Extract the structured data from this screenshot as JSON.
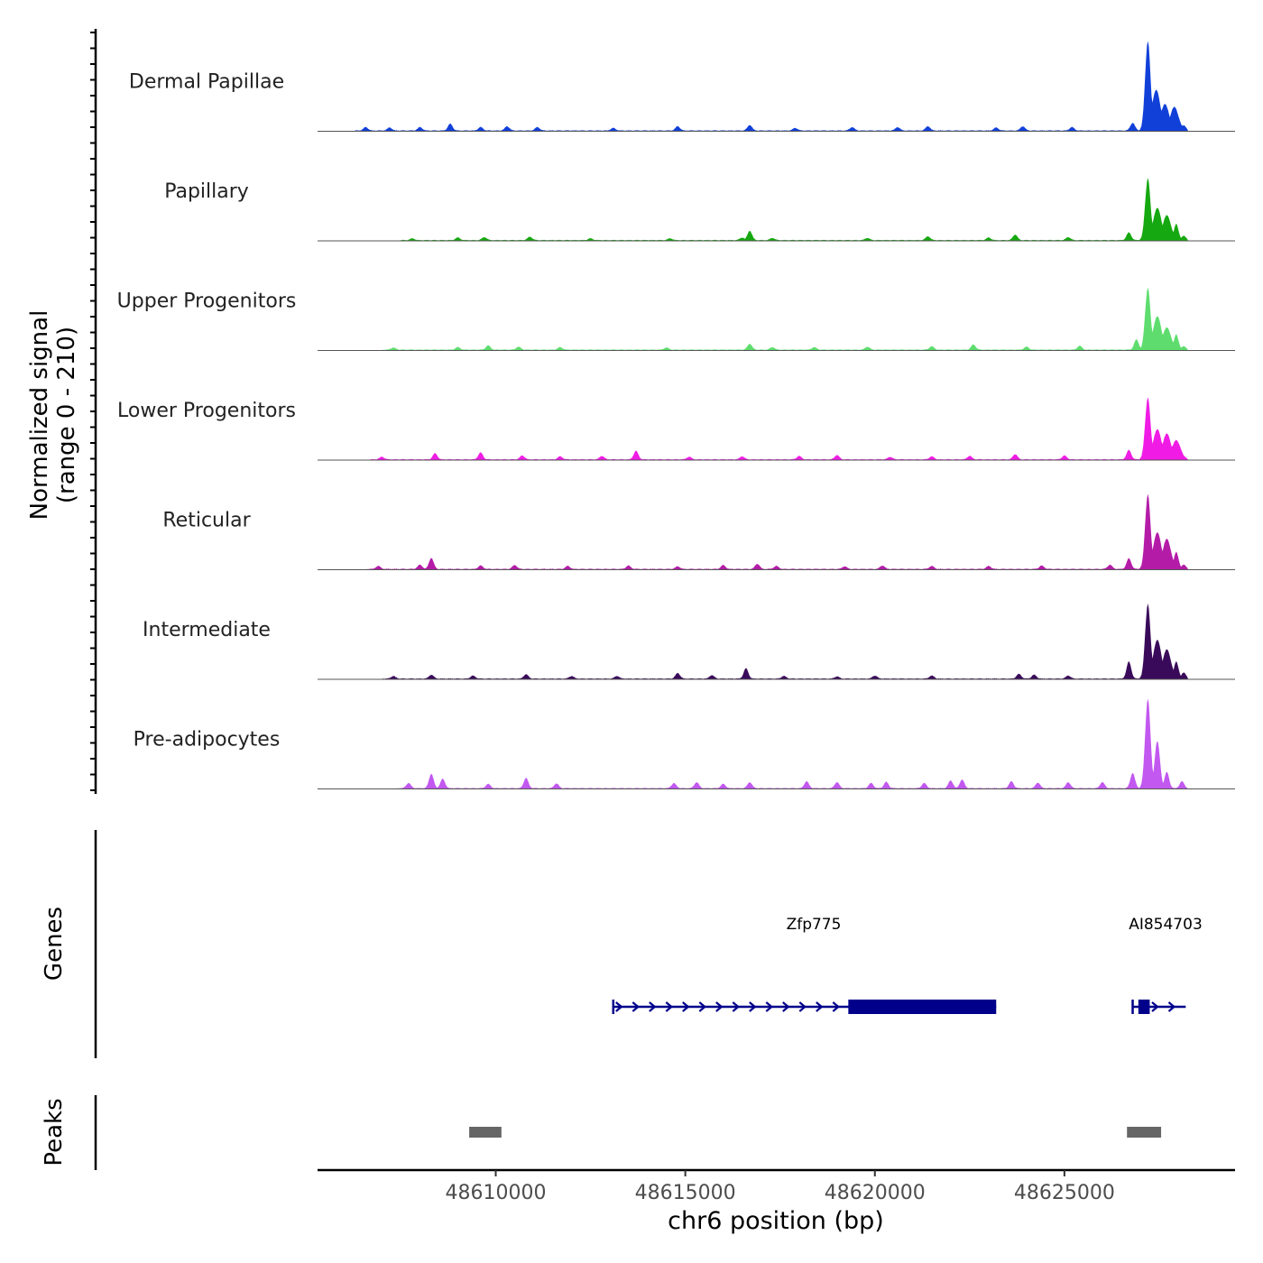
{
  "chart_data": {
    "type": "area",
    "title": "",
    "ylabel_signal": [
      "Normalized signal",
      "(range 0 - 210)"
    ],
    "ylabel_genes": "Genes",
    "ylabel_peaks": "Peaks",
    "xlabel": "chr6 position (bp)",
    "xlim": [
      48605300,
      48629500
    ],
    "x_ticks": [
      48610000,
      48615000,
      48620000,
      48625000
    ],
    "x_tick_labels": [
      "48610000",
      "48615000",
      "48620000",
      "48625000"
    ],
    "signal_ylim": [
      0,
      210
    ],
    "tracks": [
      {
        "name": "Dermal Papillae",
        "color": "#1140d9",
        "peaks": [
          [
            48606570,
            8
          ],
          [
            48607200,
            7
          ],
          [
            48608000,
            8
          ],
          [
            48608800,
            16
          ],
          [
            48609600,
            8
          ],
          [
            48610300,
            10
          ],
          [
            48611100,
            8
          ],
          [
            48613100,
            6
          ],
          [
            48614800,
            10
          ],
          [
            48616700,
            13
          ],
          [
            48617900,
            6
          ],
          [
            48619400,
            8
          ],
          [
            48620600,
            8
          ],
          [
            48621400,
            10
          ],
          [
            48623200,
            7
          ],
          [
            48623900,
            10
          ],
          [
            48625200,
            8
          ],
          [
            48626800,
            18
          ],
          [
            48627200,
            210
          ],
          [
            48627420,
            95
          ],
          [
            48627650,
            62
          ],
          [
            48627900,
            55
          ],
          [
            48628150,
            12
          ]
        ]
      },
      {
        "name": "Papillary",
        "color": "#16a810",
        "peaks": [
          [
            48607800,
            4
          ],
          [
            48609000,
            6
          ],
          [
            48609700,
            7
          ],
          [
            48610900,
            8
          ],
          [
            48612500,
            4
          ],
          [
            48614600,
            4
          ],
          [
            48616500,
            6
          ],
          [
            48616700,
            22
          ],
          [
            48617300,
            5
          ],
          [
            48619800,
            5
          ],
          [
            48621400,
            9
          ],
          [
            48623000,
            6
          ],
          [
            48623700,
            13
          ],
          [
            48625100,
            7
          ],
          [
            48626700,
            18
          ],
          [
            48627200,
            145
          ],
          [
            48627450,
            75
          ],
          [
            48627700,
            58
          ],
          [
            48627950,
            38
          ],
          [
            48628150,
            10
          ]
        ]
      },
      {
        "name": "Upper Progenitors",
        "color": "#5edd6e",
        "peaks": [
          [
            48607300,
            5
          ],
          [
            48609000,
            6
          ],
          [
            48609800,
            10
          ],
          [
            48610600,
            7
          ],
          [
            48611700,
            6
          ],
          [
            48614500,
            5
          ],
          [
            48616700,
            14
          ],
          [
            48617300,
            6
          ],
          [
            48618400,
            6
          ],
          [
            48619800,
            7
          ],
          [
            48621500,
            8
          ],
          [
            48622600,
            12
          ],
          [
            48624000,
            7
          ],
          [
            48625400,
            9
          ],
          [
            48626900,
            24
          ],
          [
            48627200,
            145
          ],
          [
            48627450,
            78
          ],
          [
            48627700,
            52
          ],
          [
            48627950,
            36
          ],
          [
            48628150,
            8
          ]
        ]
      },
      {
        "name": "Lower Progenitors",
        "color": "#f01ce6",
        "peaks": [
          [
            48607000,
            6
          ],
          [
            48608400,
            14
          ],
          [
            48609600,
            16
          ],
          [
            48610700,
            9
          ],
          [
            48611700,
            7
          ],
          [
            48612800,
            8
          ],
          [
            48613700,
            20
          ],
          [
            48615100,
            6
          ],
          [
            48616500,
            7
          ],
          [
            48618000,
            8
          ],
          [
            48619000,
            10
          ],
          [
            48620400,
            6
          ],
          [
            48621500,
            7
          ],
          [
            48622500,
            8
          ],
          [
            48623700,
            12
          ],
          [
            48625000,
            9
          ],
          [
            48626700,
            22
          ],
          [
            48627200,
            145
          ],
          [
            48627450,
            70
          ],
          [
            48627700,
            60
          ],
          [
            48627950,
            45
          ],
          [
            48628150,
            7
          ]
        ]
      },
      {
        "name": "Reticular",
        "color": "#b41ca8",
        "peaks": [
          [
            48606900,
            7
          ],
          [
            48608000,
            10
          ],
          [
            48608300,
            26
          ],
          [
            48609600,
            8
          ],
          [
            48610500,
            9
          ],
          [
            48611900,
            7
          ],
          [
            48613500,
            8
          ],
          [
            48614800,
            6
          ],
          [
            48616000,
            9
          ],
          [
            48616900,
            12
          ],
          [
            48617400,
            7
          ],
          [
            48619200,
            6
          ],
          [
            48620200,
            8
          ],
          [
            48621500,
            7
          ],
          [
            48623000,
            7
          ],
          [
            48624400,
            8
          ],
          [
            48626200,
            10
          ],
          [
            48626700,
            25
          ],
          [
            48627200,
            175
          ],
          [
            48627450,
            85
          ],
          [
            48627700,
            70
          ],
          [
            48627950,
            40
          ],
          [
            48628150,
            10
          ]
        ]
      },
      {
        "name": "Intermediate",
        "color": "#3a0a5a",
        "peaks": [
          [
            48607300,
            6
          ],
          [
            48608300,
            9
          ],
          [
            48609400,
            7
          ],
          [
            48610800,
            10
          ],
          [
            48612000,
            6
          ],
          [
            48613200,
            6
          ],
          [
            48614800,
            13
          ],
          [
            48615700,
            8
          ],
          [
            48616600,
            24
          ],
          [
            48617600,
            6
          ],
          [
            48619000,
            5
          ],
          [
            48620000,
            7
          ],
          [
            48621500,
            7
          ],
          [
            48623800,
            11
          ],
          [
            48624200,
            9
          ],
          [
            48625100,
            7
          ],
          [
            48626700,
            40
          ],
          [
            48627200,
            175
          ],
          [
            48627450,
            90
          ],
          [
            48627700,
            68
          ],
          [
            48627950,
            40
          ],
          [
            48628150,
            14
          ]
        ]
      },
      {
        "name": "Pre-adipocytes",
        "color": "#c258f0",
        "peaks": [
          [
            48607700,
            12
          ],
          [
            48608300,
            34
          ],
          [
            48608600,
            22
          ],
          [
            48609800,
            10
          ],
          [
            48610800,
            24
          ],
          [
            48611600,
            11
          ],
          [
            48614700,
            12
          ],
          [
            48615300,
            14
          ],
          [
            48616000,
            10
          ],
          [
            48616700,
            14
          ],
          [
            48618200,
            16
          ],
          [
            48619000,
            14
          ],
          [
            48619900,
            12
          ],
          [
            48620300,
            15
          ],
          [
            48621300,
            12
          ],
          [
            48622000,
            18
          ],
          [
            48622300,
            20
          ],
          [
            48623600,
            16
          ],
          [
            48624300,
            13
          ],
          [
            48625100,
            14
          ],
          [
            48626000,
            14
          ],
          [
            48626800,
            36
          ],
          [
            48627200,
            210
          ],
          [
            48627450,
            110
          ],
          [
            48627700,
            38
          ],
          [
            48628100,
            16
          ]
        ]
      }
    ],
    "genes": [
      {
        "name": "Zfp775",
        "start": 48613100,
        "end": 48623200,
        "thick_start": 48619300,
        "thick_end": 48623200,
        "strand": "+",
        "color": "#00008b"
      },
      {
        "name": "AI854703",
        "start": 48626800,
        "end": 48628200,
        "thick_start": 48626950,
        "thick_end": 48627250,
        "strand": "+",
        "color": "#00008b"
      }
    ],
    "peak_regions": [
      {
        "start": 48609300,
        "end": 48610150,
        "color": "#666666"
      },
      {
        "start": 48626650,
        "end": 48627550,
        "color": "#666666"
      }
    ]
  }
}
